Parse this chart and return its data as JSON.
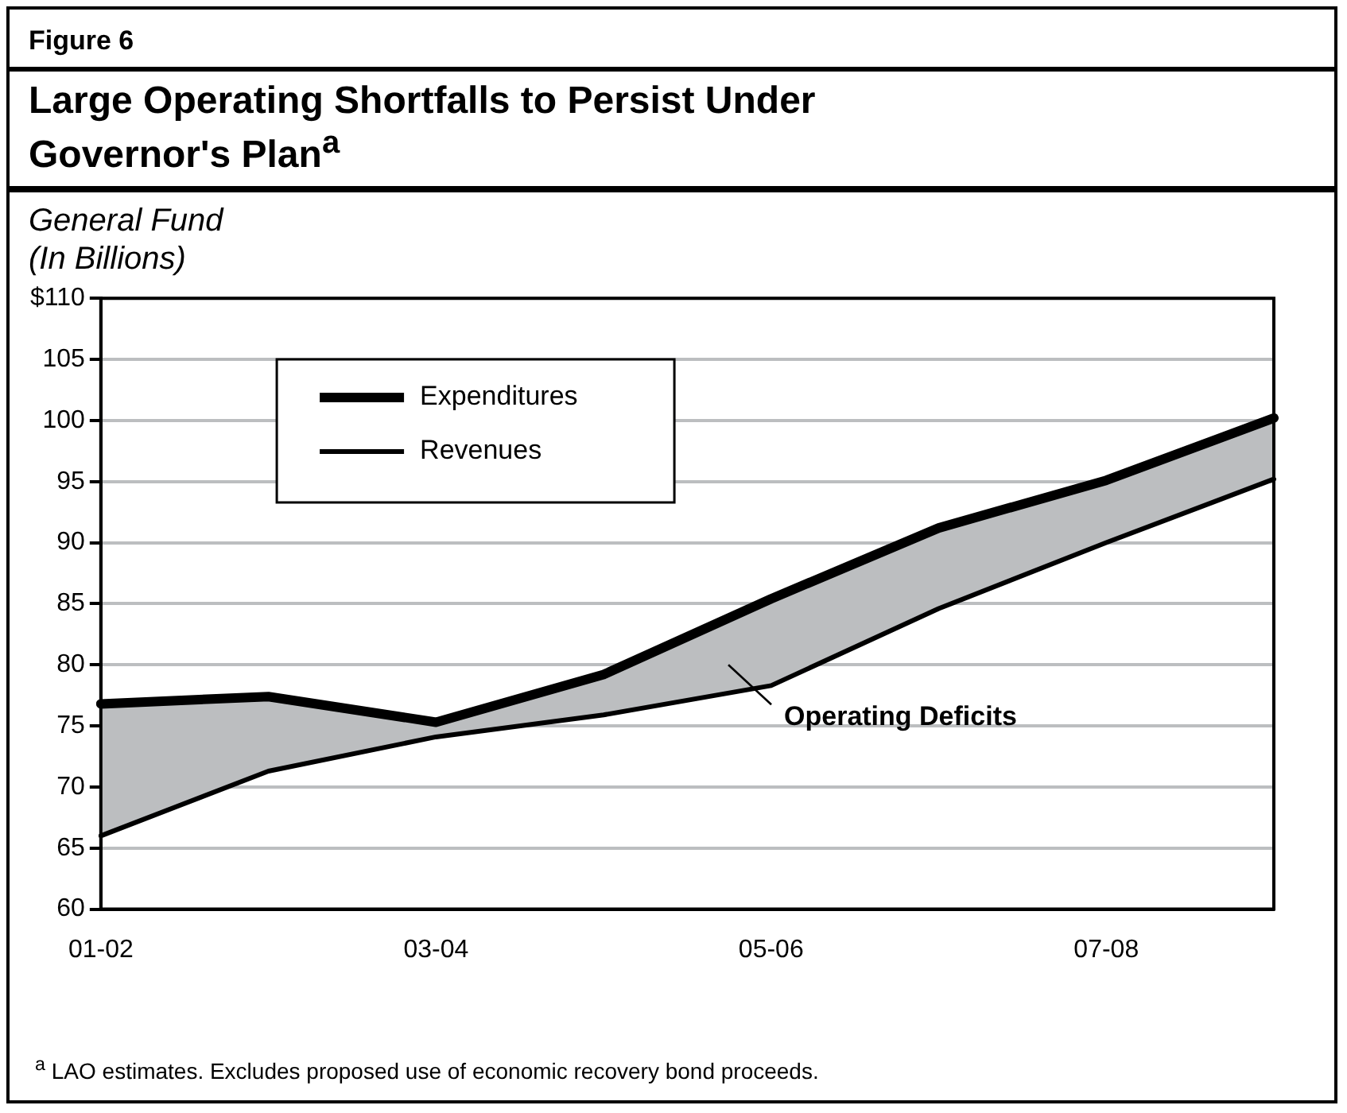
{
  "chart_data": {
    "type": "line",
    "title": "Large Operating Shortfalls to Persist Under Governor's Plan$^{a}$",
    "ylabel": "General Fund\n(In Billions)",
    "annotations": [
      "Figure 6",
      "Operating Deficits",
      "$^{a}$ LAO estimates. Excludes proposed use of economic recovery bond proceeds."
    ],
    "categories": [
      "01-02",
      null,
      "03-04",
      null,
      "05-06",
      null,
      "07-08",
      null
    ],
    "series": [
      {
        "name": "Expenditures",
        "color": "#000000",
        "values": [
          76.8,
          77.4,
          75.3,
          79.2,
          85.4,
          91.2,
          95.1,
          100.2
        ],
        "lower": [
          66.0,
          71.3,
          74.1,
          75.9,
          78.3,
          84.6,
          90.0,
          95.2
        ],
        "upper": [
          76.8,
          77.4,
          75.3,
          79.2,
          85.4,
          91.2,
          95.1,
          100.2
        ]
      },
      {
        "name": "Revenues",
        "color": "#000000",
        "values": [
          66.0,
          71.3,
          74.1,
          75.9,
          78.3,
          84.6,
          90.0,
          95.2
        ]
      }
    ],
    "ylim": [
      60,
      110
    ],
    "yticks": [
      60,
      65,
      70,
      75,
      80,
      85,
      90,
      95,
      100,
      105,
      {
        "value": 110,
        "label": "$110"
      }
    ],
    "grid": "y",
    "legend": "top left",
    "marker": "none",
    "line_style": "solid"
  }
}
